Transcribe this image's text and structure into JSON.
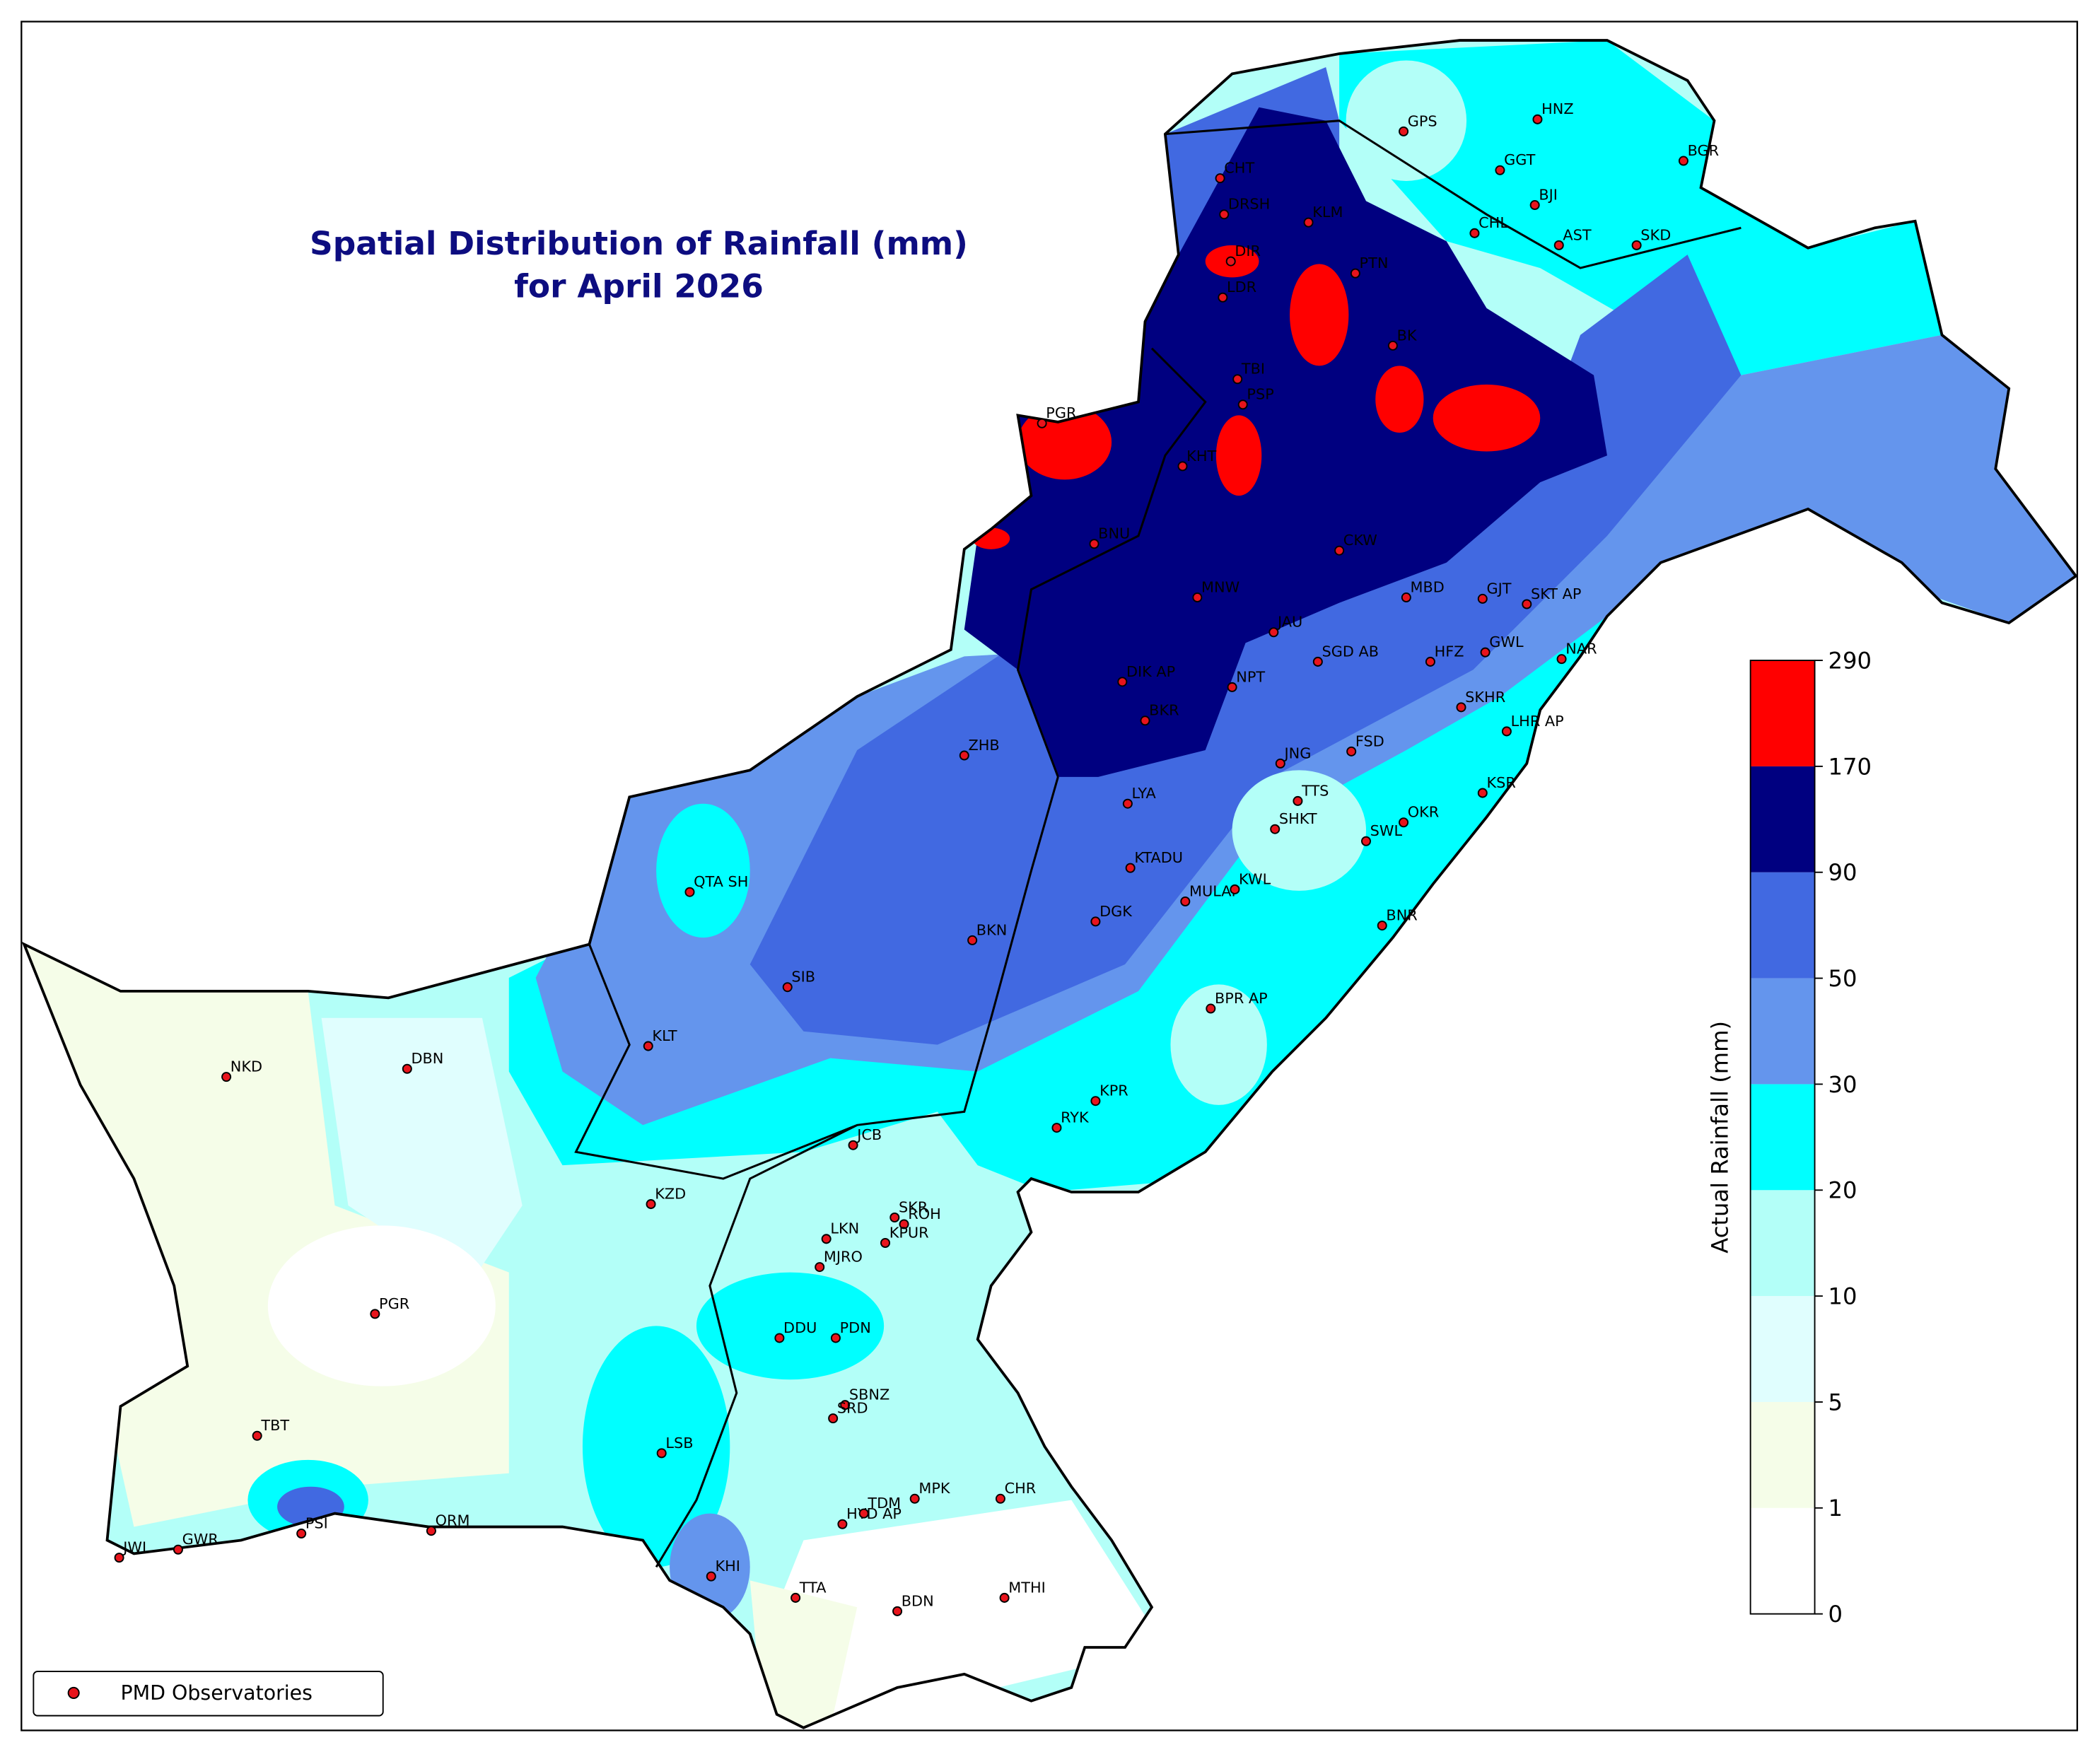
{
  "title": "Spatial Distribution of Rainfall (mm)",
  "subtitle": "for April 2026",
  "colorbar": {
    "label": "Actual Rainfall (mm)",
    "ticks": [
      0,
      1,
      5,
      10,
      20,
      30,
      50,
      90,
      170,
      290
    ],
    "colors": [
      "#ffffff",
      "#f5fde8",
      "#e0fefe",
      "#b3fff8",
      "#00ffff",
      "#6495ed",
      "#4169e1",
      "#000080",
      "#ff0000"
    ]
  },
  "legend": {
    "label": "PMD Observatories",
    "marker_color": "#e8141c"
  },
  "stations": [
    "GPS",
    "HNZ",
    "GGT",
    "BJI",
    "CHL",
    "AST",
    "SKD",
    "BGR",
    "CHT",
    "DRSH",
    "KLM",
    "DIR",
    "PTN",
    "LDR",
    "BK",
    "TBI",
    "PSP",
    "KHT",
    "PGR",
    "BNU",
    "CKW",
    "MNW",
    "MBD",
    "GJT",
    "SKT AP",
    "JAU",
    "SGD AB",
    "HFZ",
    "GWL",
    "NAR",
    "DIK AP",
    "NPT",
    "BKR",
    "SKHR",
    "LHR AP",
    "ZHB",
    "JNG",
    "FSD",
    "LYA",
    "TTS",
    "SHKT",
    "SWL",
    "OKR",
    "KSR",
    "QTA SH",
    "KTADU",
    "MULAP",
    "KWL",
    "DGK",
    "BNR",
    "BKN",
    "SIB",
    "BPR AP",
    "KLT",
    "NKD",
    "DBN",
    "KPR",
    "RYK",
    "JCB",
    "KZD",
    "SKR",
    "ROH",
    "LKN",
    "KPUR",
    "MJRO",
    "PGR",
    "DDU",
    "PDN",
    "SBNZ",
    "SRD",
    "TBT",
    "LSB",
    "MPK",
    "CHR",
    "HYD AP",
    "TDM",
    "PSI",
    "ORM",
    "GWR",
    "JWI",
    "KHI",
    "TTA",
    "MTHI",
    "BDN"
  ]
}
